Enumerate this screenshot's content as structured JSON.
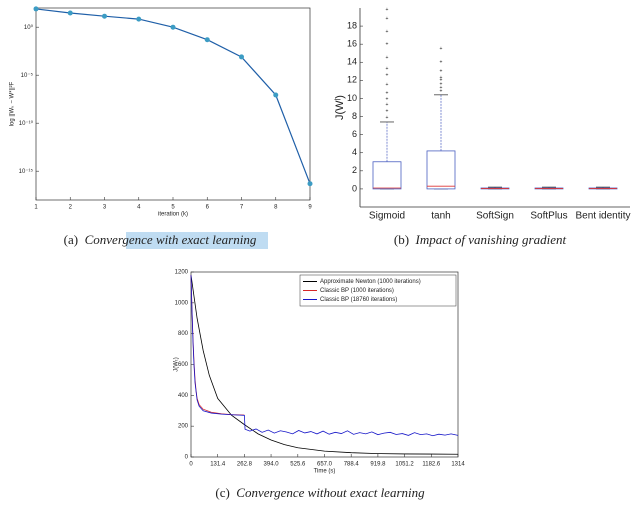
{
  "chart_data": [
    {
      "type": "line",
      "log_y": true,
      "caption_label": "(a)",
      "caption": "Convergence with exact learning",
      "xlabel": "iteration (k)",
      "ylabel": "log ||Wₖ − W*||²F",
      "x": [
        1,
        2,
        3,
        4,
        5,
        6,
        7,
        8,
        9
      ],
      "values": [
        80,
        30,
        14,
        7,
        1,
        0.05,
        0.0008,
        8.7e-08,
        5e-17
      ],
      "color": "#1f5fa8",
      "marker_color": "#3c9cc4",
      "xlim": [
        1,
        9
      ],
      "xticks": [
        1,
        2,
        3,
        4,
        5,
        6,
        7,
        8,
        9
      ],
      "ylim": [
        1e-18,
        100
      ],
      "yticks": [
        {
          "value": 1,
          "label": "10⁰"
        },
        {
          "value": 1e-05,
          "label": "10⁻⁵"
        },
        {
          "value": 1e-10,
          "label": "10⁻¹⁰"
        },
        {
          "value": 1e-15,
          "label": "10⁻¹⁵"
        }
      ]
    },
    {
      "type": "box",
      "caption_label": "(b)",
      "caption": "Impact of vanishing gradient",
      "ylabel": "J(Wˡ)",
      "categories": [
        "Sigmoid",
        "tanh",
        "SoftSign",
        "SoftPlus",
        "Bent identity"
      ],
      "boxes": [
        {
          "min": 0,
          "q1": 0,
          "median": 0.1,
          "q3": 3,
          "max": 7.4,
          "outliers": [
            7.9,
            8.6,
            9.3,
            9.9,
            10.6,
            11.5,
            12.6,
            13.3,
            14.5,
            16,
            17.4,
            18.8,
            19.8
          ]
        },
        {
          "min": 0,
          "q1": 0,
          "median": 0.3,
          "q3": 4.2,
          "max": 10.4,
          "outliers": [
            10.8,
            11.2,
            11.6,
            12,
            12.3,
            13,
            14,
            15.5
          ]
        },
        {
          "min": 0,
          "q1": 0,
          "median": 0.05,
          "q3": 0.1,
          "max": 0.2,
          "outliers": []
        },
        {
          "min": 0,
          "q1": 0,
          "median": 0.05,
          "q3": 0.1,
          "max": 0.2,
          "outliers": []
        },
        {
          "min": 0,
          "q1": 0,
          "median": 0.05,
          "q3": 0.1,
          "max": 0.2,
          "outliers": []
        }
      ],
      "color": "#4a5fc1",
      "median_color": "#d33",
      "outlier_color": "#d33",
      "ylim": [
        -2,
        20
      ],
      "yticks": [
        0,
        2,
        4,
        6,
        8,
        10,
        12,
        14,
        16,
        18
      ]
    },
    {
      "type": "line",
      "caption_label": "(c)",
      "caption": "Convergence without exact learning",
      "xlabel": "Time (s)",
      "ylabel": "J(Wₜ)",
      "series": [
        {
          "name": "Approximate Newton (1000 iterations)",
          "color": "#000000",
          "x": [
            0,
            30,
            60,
            90,
            131.4,
            200,
            262.8,
            330,
            394,
            460,
            525.6,
            657,
            788.4,
            919.8,
            1051.2,
            1182.6,
            1314
          ],
          "values": [
            1180,
            900,
            690,
            530,
            380,
            270,
            210,
            150,
            110,
            80,
            60,
            38,
            28,
            22,
            20,
            19,
            18
          ]
        },
        {
          "name": "Classic BP (1000 iterations)",
          "color": "#d62728",
          "x": [
            0,
            5,
            10,
            15,
            20,
            25,
            30,
            40,
            60,
            100,
            150,
            200,
            262.8
          ],
          "values": [
            1180,
            950,
            760,
            610,
            500,
            430,
            380,
            340,
            310,
            290,
            280,
            275,
            272
          ]
        },
        {
          "name": "Classic BP (18760 iterations)",
          "color": "#1515c8",
          "x": [
            0,
            5,
            10,
            15,
            20,
            30,
            40,
            60,
            100,
            150,
            200,
            262.8,
            266,
            290,
            320,
            350,
            380,
            410,
            440,
            470,
            500,
            530,
            560,
            590,
            620,
            650,
            680,
            710,
            740,
            770,
            800,
            830,
            860,
            890,
            920,
            950,
            980,
            1010,
            1040,
            1070,
            1100,
            1130,
            1160,
            1190,
            1220,
            1250,
            1280,
            1314
          ],
          "values": [
            1180,
            940,
            740,
            590,
            480,
            370,
            330,
            300,
            285,
            278,
            274,
            270,
            180,
            168,
            182,
            160,
            175,
            155,
            170,
            162,
            150,
            172,
            156,
            165,
            150,
            168,
            148,
            160,
            152,
            170,
            147,
            158,
            150,
            163,
            145,
            155,
            160,
            146,
            152,
            140,
            158,
            145,
            150,
            138,
            148,
            142,
            150,
            140
          ]
        }
      ],
      "xlim": [
        0,
        1314
      ],
      "xticks": [
        0,
        131.4,
        262.8,
        {
          "value": 394,
          "label": "394.0"
        },
        525.6,
        {
          "value": 657,
          "label": "657.0"
        },
        788.4,
        919.8,
        1051.2,
        1182.6,
        1314
      ],
      "ylim": [
        0,
        1200
      ],
      "yticks": [
        0,
        200,
        400,
        600,
        800,
        1000,
        1200
      ]
    }
  ]
}
